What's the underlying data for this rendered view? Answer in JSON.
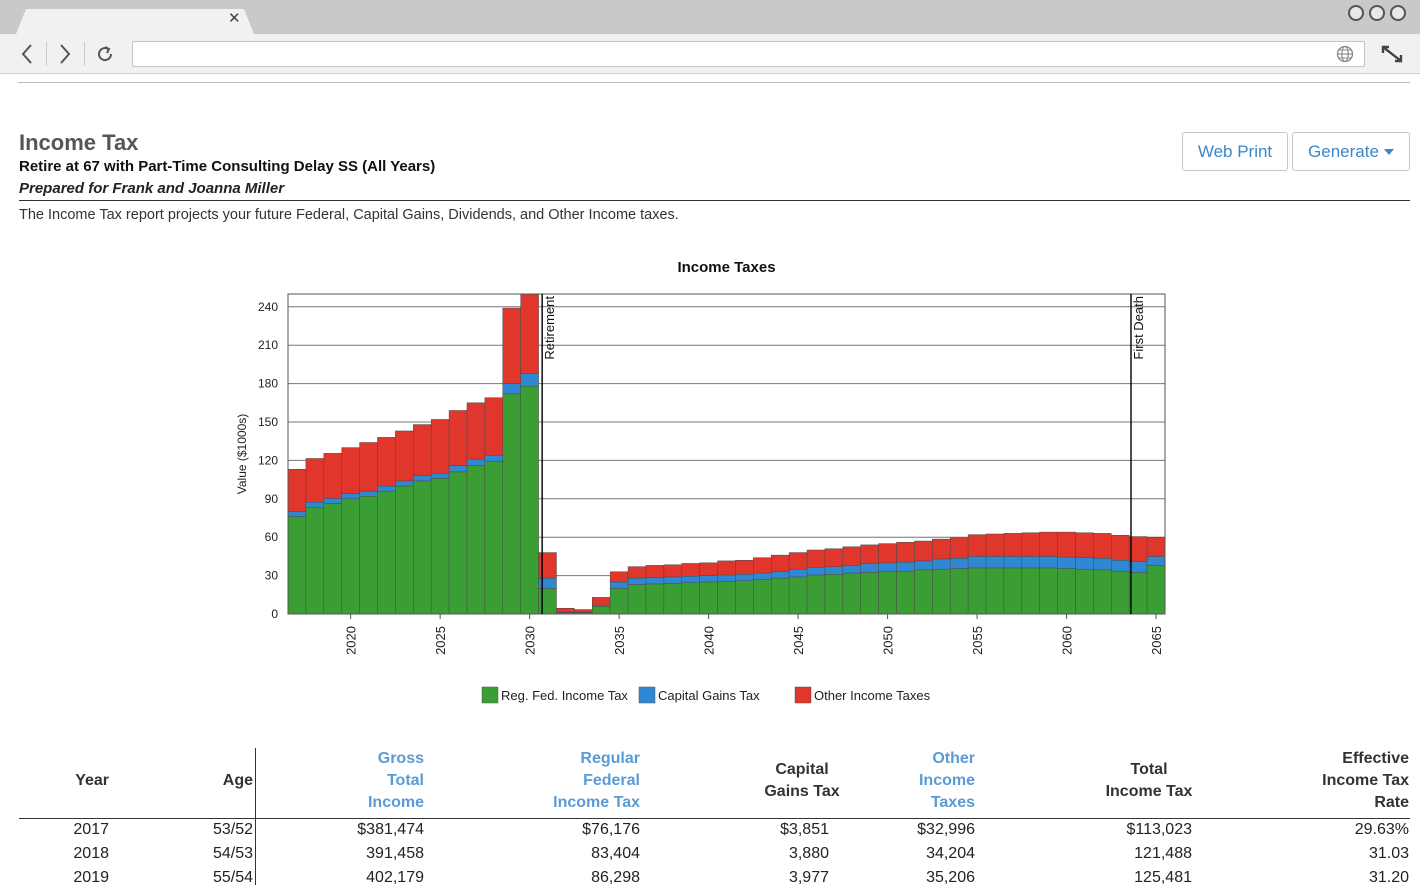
{
  "report": {
    "title": "Income Tax",
    "subtitle": "Retire at 67 with Part-Time Consulting Delay SS (All Years)",
    "prepared_for": "Prepared for Frank and Joanna Miller",
    "description": "The Income Tax report projects your future Federal, Capital Gains, Dividends, and Other Income taxes."
  },
  "toolbar": {
    "web_print_label": "Web Print",
    "generate_label": "Generate"
  },
  "chart_data": {
    "type": "bar",
    "stacked": true,
    "title": "Income Taxes",
    "ylabel": "Value ($1000s)",
    "xlabel": "",
    "ylim": [
      0,
      250
    ],
    "yticks": [
      0,
      30,
      60,
      90,
      120,
      150,
      180,
      210,
      240
    ],
    "xticks": [
      2020,
      2025,
      2030,
      2035,
      2040,
      2045,
      2050,
      2055,
      2060,
      2065
    ],
    "categories": [
      2017,
      2018,
      2019,
      2020,
      2021,
      2022,
      2023,
      2024,
      2025,
      2026,
      2027,
      2028,
      2029,
      2030,
      2031,
      2032,
      2033,
      2034,
      2035,
      2036,
      2037,
      2038,
      2039,
      2040,
      2041,
      2042,
      2043,
      2044,
      2045,
      2046,
      2047,
      2048,
      2049,
      2050,
      2051,
      2052,
      2053,
      2054,
      2055,
      2056,
      2057,
      2058,
      2059,
      2060,
      2061,
      2062,
      2063,
      2064,
      2065
    ],
    "series": [
      {
        "name": "Reg. Fed. Income Tax",
        "color": "#3a9e34",
        "values": [
          76.2,
          83.4,
          86.3,
          90,
          92,
          96,
          100,
          104,
          106,
          111,
          116,
          119,
          172,
          178,
          20,
          1,
          1,
          6,
          20,
          23,
          23.5,
          24,
          24.5,
          25,
          25.5,
          26,
          27,
          28,
          29,
          30.5,
          31,
          32,
          32.5,
          33,
          33.5,
          34.5,
          35,
          35.5,
          36,
          36,
          36,
          36,
          36,
          35.5,
          35,
          34.5,
          33.5,
          32.5,
          38
        ]
      },
      {
        "name": "Capital Gains Tax",
        "color": "#2f88d1",
        "values": [
          3.9,
          3.9,
          4.0,
          4,
          4,
          4,
          4,
          4,
          4,
          5,
          5,
          5,
          8,
          10,
          8,
          0.5,
          0.5,
          1,
          5,
          5,
          5,
          5,
          5,
          5,
          5,
          5,
          5,
          5,
          6,
          6,
          6,
          6,
          7,
          7,
          7,
          7,
          8,
          8,
          9,
          9,
          9,
          9,
          9,
          9,
          9,
          9,
          8.5,
          8.5,
          7
        ]
      },
      {
        "name": "Other Income Taxes",
        "color": "#e0362b",
        "values": [
          33,
          34.2,
          35.2,
          36,
          38,
          38,
          39,
          40,
          42,
          43,
          44,
          45,
          59,
          62,
          20,
          3,
          2,
          6,
          8,
          9,
          9.5,
          9.5,
          10,
          10,
          11,
          11,
          12,
          13,
          13,
          13.5,
          14,
          14.5,
          14.5,
          15,
          15.5,
          15.5,
          15.5,
          16,
          17,
          17.5,
          18,
          18.5,
          19,
          19.5,
          19.5,
          19.5,
          19.5,
          19.5,
          15
        ]
      }
    ],
    "markers": [
      {
        "label": "Retirement",
        "x": 2031.2
      },
      {
        "label": "First Death",
        "x": 2064.1
      }
    ]
  },
  "table": {
    "headers": {
      "year": "Year",
      "age": "Age",
      "gross": [
        "Gross",
        "Total",
        "Income"
      ],
      "regular": [
        "Regular",
        "Federal",
        "Income Tax"
      ],
      "capital": [
        "Capital",
        "Gains Tax"
      ],
      "other": [
        "Other",
        "Income",
        "Taxes"
      ],
      "total": [
        "Total",
        "Income Tax"
      ],
      "rate": [
        "Effective",
        "Income Tax",
        "Rate"
      ]
    },
    "rows": [
      {
        "year": "2017",
        "age": "53/52",
        "gross": "$381,474",
        "regular": "$76,176",
        "capital": "$3,851",
        "other": "$32,996",
        "total": "$113,023",
        "rate": "29.63%"
      },
      {
        "year": "2018",
        "age": "54/53",
        "gross": "391,458",
        "regular": "83,404",
        "capital": "3,880",
        "other": "34,204",
        "total": "121,488",
        "rate": "31.03"
      },
      {
        "year": "2019",
        "age": "55/54",
        "gross": "402,179",
        "regular": "86,298",
        "capital": "3,977",
        "other": "35,206",
        "total": "125,481",
        "rate": "31.20"
      }
    ]
  }
}
